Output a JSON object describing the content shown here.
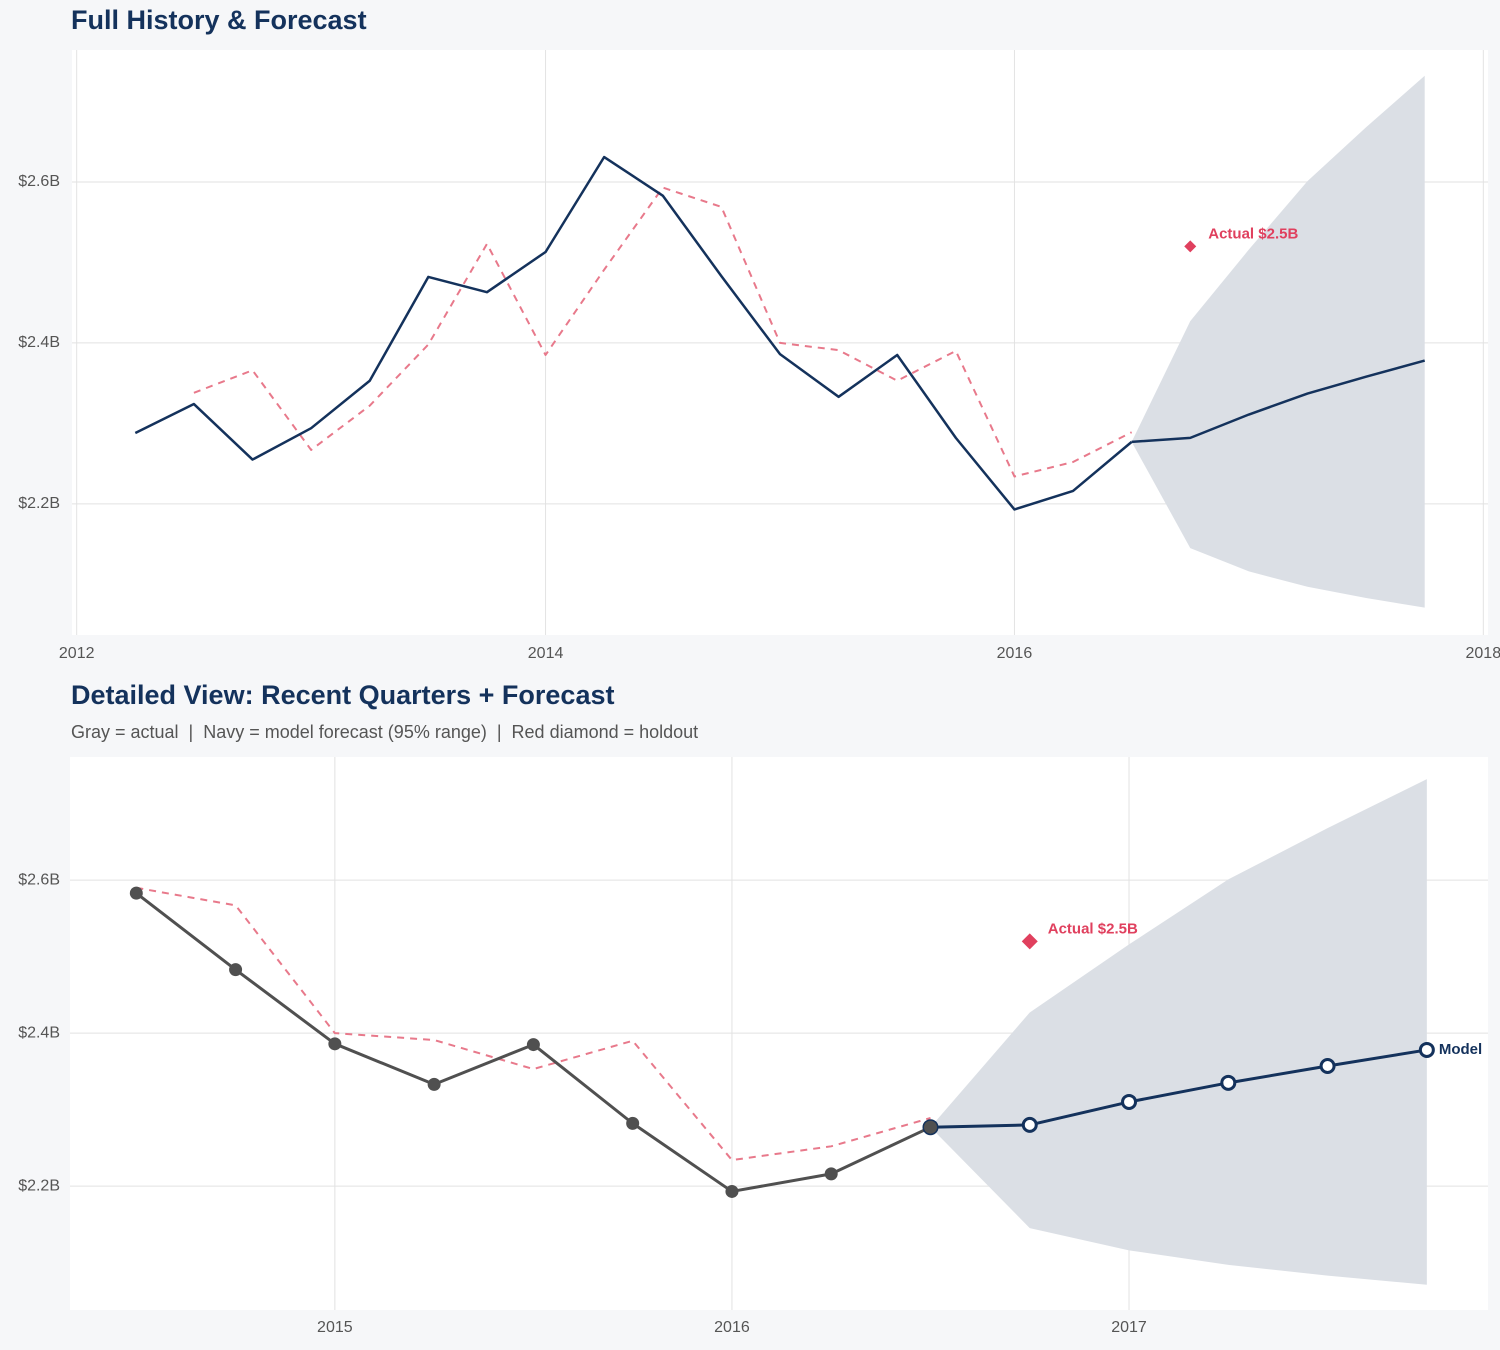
{
  "chart_data": [
    {
      "type": "line",
      "title": "Full History & Forecast",
      "xlim": [
        2011.98,
        2018.02
      ],
      "ylim": [
        2.037,
        2.764
      ],
      "xticks": [
        2012,
        2014,
        2016,
        2018
      ],
      "yticks": [
        {
          "value": 2.2,
          "label": "$2.2B"
        },
        {
          "value": 2.4,
          "label": "$2.4B"
        },
        {
          "value": 2.6,
          "label": "$2.6B"
        }
      ],
      "grid": true,
      "band": {
        "color": "#dbdfe5",
        "x": [
          2016.5,
          2016.75,
          2017.0,
          2017.25,
          2017.5,
          2017.75
        ],
        "lower": [
          2.277,
          2.145,
          2.116,
          2.097,
          2.083,
          2.071
        ],
        "upper": [
          2.277,
          2.427,
          2.516,
          2.601,
          2.668,
          2.732
        ]
      },
      "series": [
        {
          "color": "#e8798b",
          "dash": true,
          "markers": false,
          "x": [
            2012.5,
            2012.75,
            2013.0,
            2013.25,
            2013.5,
            2013.75,
            2014.0,
            2014.25,
            2014.5,
            2014.75,
            2015.0,
            2015.25,
            2015.5,
            2015.75,
            2016.0,
            2016.25,
            2016.5
          ],
          "values": [
            2.338,
            2.366,
            2.267,
            2.322,
            2.398,
            2.523,
            2.385,
            2.491,
            2.593,
            2.569,
            2.4,
            2.391,
            2.353,
            2.39,
            2.234,
            2.252,
            2.289
          ]
        },
        {
          "color": "#14325c",
          "dash": false,
          "markers": false,
          "x": [
            2012.25,
            2012.5,
            2012.75,
            2013.0,
            2013.25,
            2013.5,
            2013.75,
            2014.0,
            2014.25,
            2014.5,
            2014.75,
            2015.0,
            2015.25,
            2015.5,
            2015.75,
            2016.0,
            2016.25,
            2016.5
          ],
          "values": [
            2.288,
            2.324,
            2.255,
            2.294,
            2.353,
            2.482,
            2.463,
            2.513,
            2.631,
            2.583,
            2.483,
            2.386,
            2.333,
            2.385,
            2.282,
            2.193,
            2.216,
            2.277
          ]
        },
        {
          "color": "#14325c",
          "dash": false,
          "markers": false,
          "x": [
            2016.5,
            2016.75,
            2017.0,
            2017.25,
            2017.5,
            2017.75
          ],
          "values": [
            2.277,
            2.282,
            2.311,
            2.337,
            2.358,
            2.378
          ]
        }
      ],
      "holdout": {
        "x": 2016.75,
        "value": 2.52,
        "value_label": "Actual $2.5B",
        "color": "#e0405e"
      }
    },
    {
      "type": "line",
      "title": "Detailed View: Recent Quarters + Forecast",
      "subtitle": "Gray = actual  |  Navy = model forecast (95% range)  |  Red diamond = holdout",
      "xlim": [
        2014.333,
        2017.904
      ],
      "ylim": [
        2.038,
        2.761
      ],
      "xticks": [
        2015,
        2016,
        2017
      ],
      "yticks": [
        {
          "value": 2.2,
          "label": "$2.2B"
        },
        {
          "value": 2.4,
          "label": "$2.4B"
        },
        {
          "value": 2.6,
          "label": "$2.6B"
        }
      ],
      "grid": true,
      "band": {
        "color": "#dbdfe5",
        "x": [
          2016.5,
          2016.75,
          2017.0,
          2017.25,
          2017.5,
          2017.75
        ],
        "lower": [
          2.277,
          2.145,
          2.116,
          2.097,
          2.083,
          2.071
        ],
        "upper": [
          2.277,
          2.427,
          2.516,
          2.601,
          2.668,
          2.732
        ]
      },
      "series": [
        {
          "color": "#e8798b",
          "dash": true,
          "markers": false,
          "x": [
            2014.5,
            2014.75,
            2015.0,
            2015.25,
            2015.5,
            2015.75,
            2016.0,
            2016.25,
            2016.5
          ],
          "values": [
            2.59,
            2.567,
            2.4,
            2.391,
            2.353,
            2.39,
            2.234,
            2.252,
            2.289
          ]
        },
        {
          "color": "#14325c",
          "dash": false,
          "markers": "hollow",
          "name": "Model",
          "x": [
            2016.5,
            2016.75,
            2017.0,
            2017.25,
            2017.5,
            2017.75
          ],
          "values": [
            2.277,
            2.28,
            2.31,
            2.335,
            2.357,
            2.378
          ]
        },
        {
          "color": "#505050",
          "dash": false,
          "markers": "filled",
          "x": [
            2014.5,
            2014.75,
            2015.0,
            2015.25,
            2015.5,
            2015.75,
            2016.0,
            2016.25,
            2016.5
          ],
          "values": [
            2.583,
            2.483,
            2.386,
            2.333,
            2.385,
            2.282,
            2.193,
            2.216,
            2.277
          ]
        }
      ],
      "holdout": {
        "x": 2016.75,
        "value": 2.52,
        "value_label": "Actual $2.5B",
        "color": "#e0405e"
      }
    }
  ]
}
